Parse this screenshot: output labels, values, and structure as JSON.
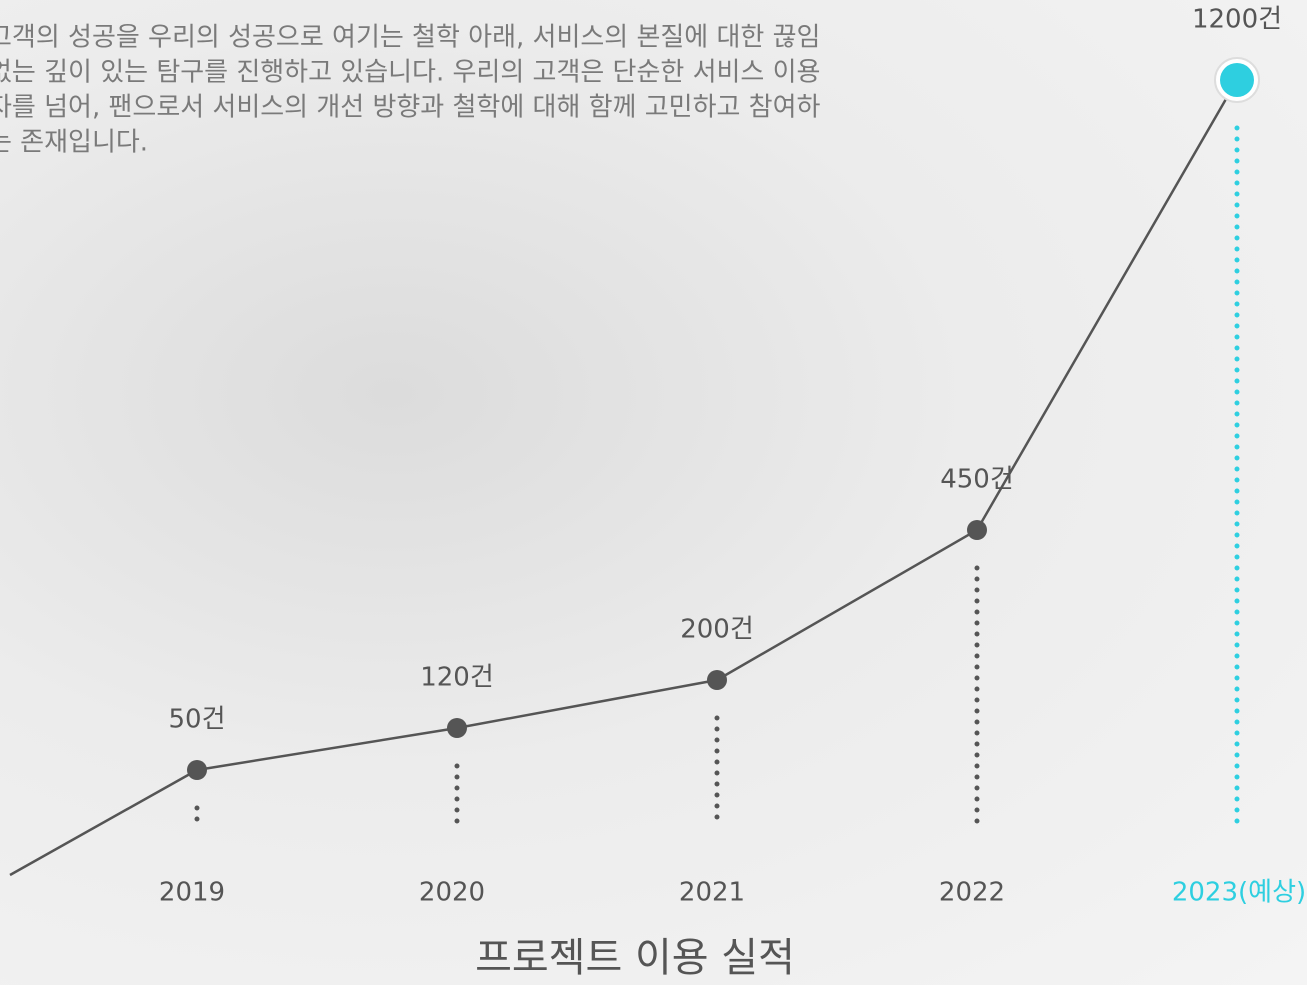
{
  "intro": {
    "lines": [
      "고객의 성공을 우리의 성공으로 여기는 철학 아래, 서비스의 본질에 대한 끊임",
      "없는 깊이 있는 탐구를 진행하고 있습니다. 우리의 고객은 단순한 서비스 이용",
      "자를 넘어, 팬으로서 서비스의 개선 방향과 철학에 대해 함께 고민하고 참여하",
      "는 존재입니다."
    ]
  },
  "chart_data": {
    "type": "line",
    "title": "프로젝트 이용 실적",
    "categories": [
      "2019",
      "2020",
      "2021",
      "2022",
      "2023(예상)"
    ],
    "values": [
      50,
      120,
      200,
      450,
      1200
    ],
    "value_labels": [
      "50건",
      "120건",
      "200건",
      "450건",
      "1200건"
    ],
    "color": "#555555",
    "point_colors": [
      "#555555",
      "#555555",
      "#555555",
      "#555555",
      "#2ecfe0"
    ]
  }
}
